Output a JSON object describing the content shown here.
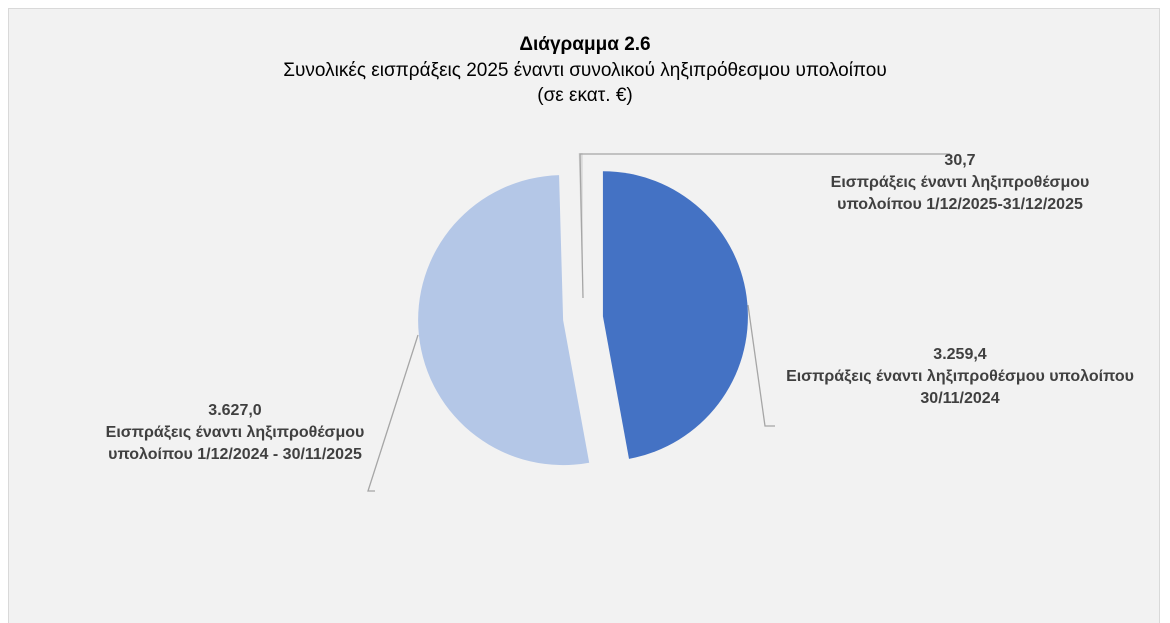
{
  "chart_data": {
    "type": "pie",
    "title": "Διάγραμμα 2.6",
    "subtitle": "Συνολικές εισπράξεις 2025 έναντι συνολικού ληξιπρόθεσμου υπολοίπου",
    "unit_label": "(σε εκατ. €)",
    "categories": [
      "Εισπράξεις έναντι ληξιπροθέσμου υπολοίπου 30/11/2024",
      "Εισπράξεις έναντι ληξιπροθέσμου υπολοίπου 1/12/2024 - 30/11/2025",
      "Εισπράξεις έναντι ληξιπροθέσμου υπολοίπου 1/12/2025-31/12/2025"
    ],
    "values": [
      3259.4,
      3627.0,
      30.7
    ],
    "value_labels": [
      "3.259,4",
      "3.627,0",
      "30,7"
    ],
    "colors": [
      "#4472c4",
      "#b4c7e7",
      "#d9d9d9"
    ]
  }
}
